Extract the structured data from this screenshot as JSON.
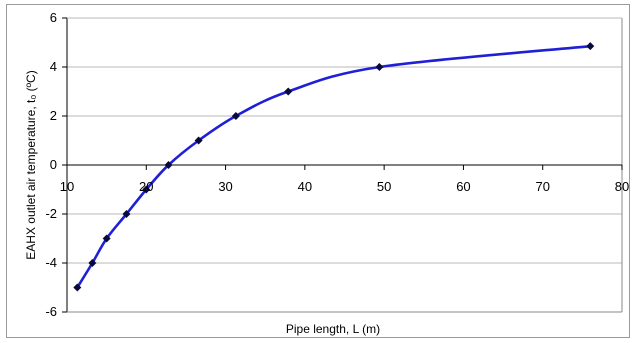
{
  "chart_data": {
    "type": "line",
    "xlabel": "Pipe length, L (m)",
    "ylabel": "EAHX outlet air temperature, t₀ (ºC)",
    "xlim": [
      10,
      80
    ],
    "ylim": [
      -6,
      6
    ],
    "x_ticks": [
      10,
      20,
      30,
      40,
      50,
      60,
      70,
      80
    ],
    "y_ticks": [
      -6,
      -4,
      -2,
      0,
      2,
      4,
      6
    ],
    "grid": "horizontal",
    "legend": "none",
    "series": [
      {
        "color": "#1f1fd6",
        "marker_color": "#0a0a3a",
        "points": [
          {
            "x": 11.3,
            "y": -5
          },
          {
            "x": 13.2,
            "y": -4
          },
          {
            "x": 15.0,
            "y": -3
          },
          {
            "x": 17.5,
            "y": -2
          },
          {
            "x": 20.0,
            "y": -1
          },
          {
            "x": 22.8,
            "y": 0
          },
          {
            "x": 26.6,
            "y": 1
          },
          {
            "x": 31.3,
            "y": 2
          },
          {
            "x": 37.9,
            "y": 3
          },
          {
            "x": 49.4,
            "y": 4
          },
          {
            "x": 76.0,
            "y": 4.85
          }
        ]
      }
    ]
  }
}
